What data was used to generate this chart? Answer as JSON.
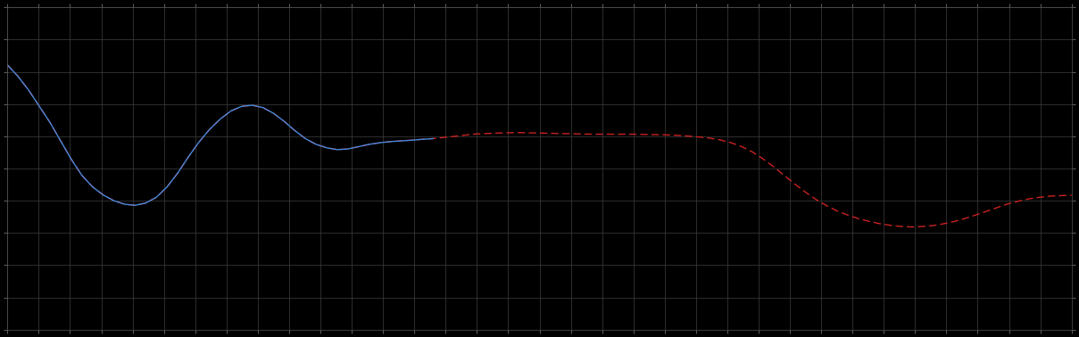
{
  "background_color": "#000000",
  "plot_bg_color": "#000000",
  "grid_color": "#404040",
  "blue_line_color": "#4488dd",
  "red_line_color": "#cc2222",
  "figsize": [
    12.09,
    3.78
  ],
  "dpi": 100,
  "xlim": [
    0,
    100
  ],
  "ylim": [
    0,
    14
  ],
  "n_gridlines_x": 34,
  "n_gridlines_y": 10,
  "blue_x": [
    0,
    1,
    2,
    3,
    4,
    5,
    6,
    7,
    8,
    9,
    10,
    11,
    12,
    13,
    14,
    15,
    16,
    17,
    18,
    19,
    20,
    21,
    22,
    23,
    24,
    25,
    26,
    27,
    28,
    29,
    30,
    31,
    32,
    33,
    34,
    35,
    36,
    37,
    38,
    39,
    40
  ],
  "blue_y": [
    11.5,
    11.0,
    10.4,
    9.7,
    9.0,
    8.2,
    7.4,
    6.7,
    6.2,
    5.85,
    5.6,
    5.45,
    5.4,
    5.5,
    5.75,
    6.2,
    6.8,
    7.5,
    8.15,
    8.7,
    9.15,
    9.5,
    9.7,
    9.75,
    9.65,
    9.4,
    9.05,
    8.65,
    8.3,
    8.05,
    7.9,
    7.82,
    7.85,
    7.95,
    8.05,
    8.12,
    8.17,
    8.2,
    8.23,
    8.27,
    8.3
  ],
  "red_x": [
    0,
    1,
    2,
    3,
    4,
    5,
    6,
    7,
    8,
    9,
    10,
    11,
    12,
    13,
    14,
    15,
    16,
    17,
    18,
    19,
    20,
    21,
    22,
    23,
    24,
    25,
    26,
    27,
    28,
    29,
    30,
    31,
    32,
    33,
    34,
    35,
    36,
    37,
    38,
    39,
    40,
    41,
    42,
    43,
    44,
    45,
    46,
    47,
    48,
    49,
    50,
    51,
    52,
    53,
    54,
    55,
    56,
    57,
    58,
    59,
    60,
    61,
    62,
    63,
    64,
    65,
    66,
    67,
    68,
    69,
    70,
    71,
    72,
    73,
    74,
    75,
    76,
    77,
    78,
    79,
    80,
    81,
    82,
    83,
    84,
    85,
    86,
    87,
    88,
    89,
    90,
    91,
    92,
    93,
    94,
    95,
    96,
    97,
    98,
    99,
    100
  ],
  "red_y": [
    11.5,
    11.0,
    10.4,
    9.7,
    9.0,
    8.2,
    7.4,
    6.7,
    6.2,
    5.85,
    5.6,
    5.45,
    5.4,
    5.5,
    5.75,
    6.2,
    6.8,
    7.5,
    8.15,
    8.7,
    9.15,
    9.5,
    9.7,
    9.75,
    9.65,
    9.4,
    9.05,
    8.65,
    8.3,
    8.05,
    7.9,
    7.82,
    7.85,
    7.95,
    8.05,
    8.12,
    8.17,
    8.2,
    8.23,
    8.27,
    8.3,
    8.35,
    8.4,
    8.45,
    8.5,
    8.52,
    8.54,
    8.55,
    8.56,
    8.55,
    8.54,
    8.53,
    8.52,
    8.51,
    8.5,
    8.49,
    8.49,
    8.49,
    8.49,
    8.49,
    8.48,
    8.47,
    8.46,
    8.44,
    8.41,
    8.37,
    8.32,
    8.24,
    8.12,
    7.95,
    7.72,
    7.42,
    7.08,
    6.7,
    6.32,
    5.97,
    5.65,
    5.38,
    5.15,
    4.97,
    4.82,
    4.7,
    4.6,
    4.53,
    4.48,
    4.46,
    4.48,
    4.52,
    4.6,
    4.7,
    4.83,
    4.98,
    5.14,
    5.3,
    5.46,
    5.58,
    5.68,
    5.75,
    5.8,
    5.82,
    5.84
  ]
}
